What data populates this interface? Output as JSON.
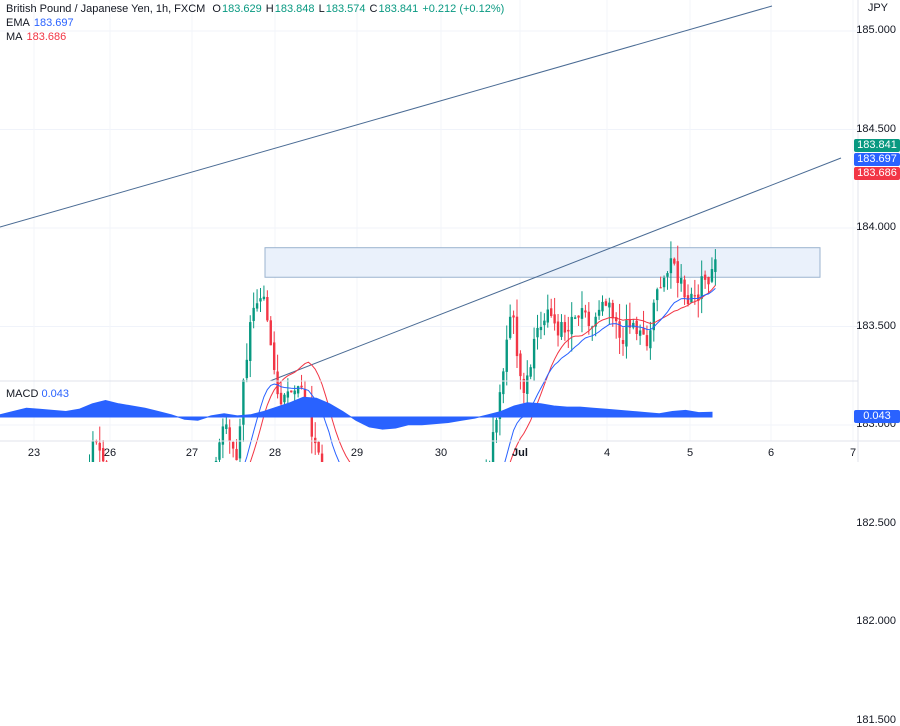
{
  "header": {
    "symbol": "British Pound / Japanese Yen, 1h, FXCM",
    "ohlc": {
      "o_label": "O",
      "o": "183.629",
      "h_label": "H",
      "h": "183.848",
      "l_label": "L",
      "l": "183.574",
      "c_label": "C",
      "c": "183.841",
      "change": "+0.212 (+0.12%)"
    },
    "ema_label": "EMA",
    "ema_value": "183.697",
    "ma_label": "MA",
    "ma_value": "183.686",
    "currency": "JPY"
  },
  "price_tags": {
    "close": "183.841",
    "ema": "183.697",
    "ma": "183.686",
    "macd": "0.043"
  },
  "macd": {
    "label": "MACD",
    "value": "0.043"
  },
  "colors": {
    "up": "#089981",
    "down": "#f23645",
    "ema": "#2962ff",
    "ma": "#f23645",
    "macd": "#2962ff",
    "channel": "#4a6b94",
    "zone_fill": "#eaf1fb",
    "zone_stroke": "#9bb3cf"
  },
  "chart_data": {
    "type": "candlestick",
    "title": "British Pound / Japanese Yen, 1h, FXCM",
    "y_ticks": [
      "185.000",
      "184.500",
      "184.000",
      "183.500",
      "183.000",
      "182.500",
      "182.000",
      "181.500"
    ],
    "ylim": [
      181.4,
      185.15
    ],
    "x_ticks": [
      "23",
      "26",
      "27",
      "28",
      "29",
      "30",
      "Jul",
      "4",
      "5",
      "6",
      "7"
    ],
    "price_anchor_path": [
      [
        0,
        181.65
      ],
      [
        4,
        182.35
      ],
      [
        8,
        182.05
      ],
      [
        12,
        182.4
      ],
      [
        16,
        182.0
      ],
      [
        20,
        181.75
      ],
      [
        24,
        182.7
      ],
      [
        27,
        182.95
      ],
      [
        32,
        182.6
      ],
      [
        36,
        182.75
      ],
      [
        40,
        182.45
      ],
      [
        44,
        182.1
      ],
      [
        48,
        182.5
      ],
      [
        52,
        182.6
      ],
      [
        56,
        182.4
      ],
      [
        60,
        182.65
      ],
      [
        64,
        183.0
      ],
      [
        68,
        182.85
      ],
      [
        72,
        183.55
      ],
      [
        76,
        183.6
      ],
      [
        80,
        183.15
      ],
      [
        84,
        183.2
      ],
      [
        88,
        183.15
      ],
      [
        92,
        182.85
      ],
      [
        96,
        182.3
      ],
      [
        100,
        182.5
      ],
      [
        104,
        182.55
      ],
      [
        108,
        182.4
      ],
      [
        112,
        182.3
      ],
      [
        116,
        182.45
      ],
      [
        120,
        182.6
      ],
      [
        124,
        182.5
      ],
      [
        128,
        182.6
      ],
      [
        132,
        182.65
      ],
      [
        136,
        182.6
      ],
      [
        140,
        182.65
      ],
      [
        144,
        183.0
      ],
      [
        148,
        183.6
      ],
      [
        152,
        183.2
      ],
      [
        156,
        183.5
      ],
      [
        160,
        183.55
      ],
      [
        164,
        183.45
      ],
      [
        168,
        183.55
      ],
      [
        172,
        183.5
      ],
      [
        176,
        183.6
      ],
      [
        180,
        183.45
      ],
      [
        184,
        183.5
      ],
      [
        188,
        183.4
      ],
      [
        192,
        183.75
      ],
      [
        196,
        183.8
      ],
      [
        200,
        183.65
      ],
      [
        204,
        183.7
      ],
      [
        208,
        183.84
      ]
    ],
    "resistance_zone": [
      183.75,
      183.9
    ],
    "macd_values": [
      0.02,
      0.05,
      0.08,
      0.07,
      0.06,
      0.05,
      0.07,
      0.12,
      0.15,
      0.12,
      0.1,
      0.08,
      0.05,
      0.02,
      -0.02,
      -0.03,
      0.01,
      0.03,
      0.01,
      0.02,
      0.05,
      0.09,
      0.13,
      0.18,
      0.17,
      0.12,
      0.05,
      -0.03,
      -0.09,
      -0.11,
      -0.1,
      -0.07,
      -0.07,
      -0.06,
      -0.05,
      -0.03,
      -0.01,
      0.02,
      0.05,
      0.1,
      0.13,
      0.12,
      0.1,
      0.09,
      0.09,
      0.08,
      0.07,
      0.06,
      0.05,
      0.04,
      0.03,
      0.05,
      0.06,
      0.04,
      0.043
    ]
  }
}
